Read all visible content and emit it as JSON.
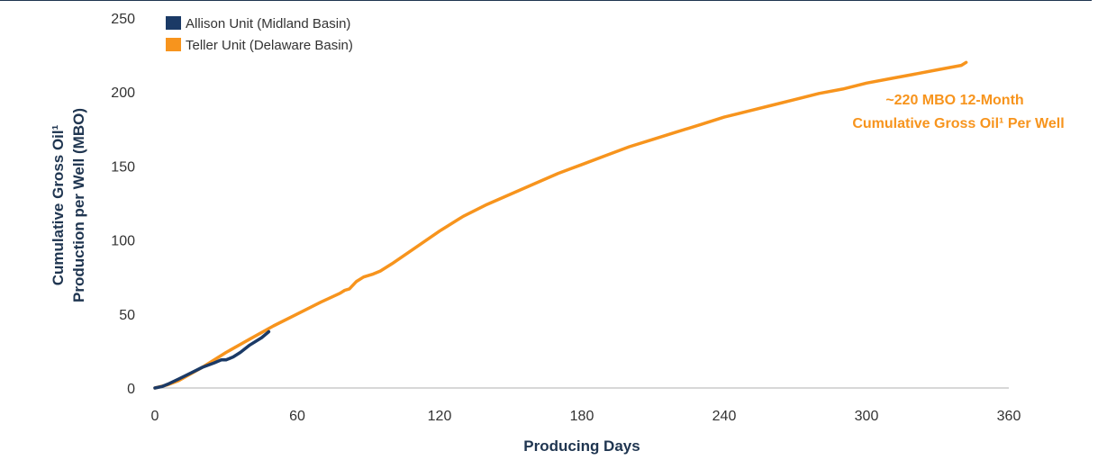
{
  "chart_data": {
    "type": "line",
    "xlabel": "Producing Days",
    "ylabel_line1": "Cumulative Gross Oil¹",
    "ylabel_line2": "Production per Well (MBO)",
    "xlim": [
      0,
      360
    ],
    "ylim": [
      0,
      250
    ],
    "x_ticks": [
      0,
      60,
      120,
      180,
      240,
      300,
      360
    ],
    "y_ticks": [
      0,
      50,
      100,
      150,
      200,
      250
    ],
    "grid": false,
    "legend_position": "top-left",
    "series": [
      {
        "name": "Allison Unit (Midland Basin)",
        "color": "#1b3a66",
        "x": [
          0,
          3,
          6,
          10,
          15,
          20,
          25,
          28,
          30,
          33,
          36,
          40,
          45,
          48
        ],
        "y": [
          0,
          1,
          3,
          6,
          10,
          14,
          17,
          19,
          19,
          21,
          24,
          29,
          34,
          38
        ]
      },
      {
        "name": "Teller Unit (Delaware Basin)",
        "color": "#f7941d",
        "x": [
          0,
          5,
          10,
          20,
          30,
          40,
          50,
          60,
          70,
          78,
          80,
          82,
          85,
          88,
          92,
          95,
          100,
          110,
          120,
          130,
          140,
          150,
          160,
          170,
          180,
          190,
          200,
          210,
          220,
          230,
          240,
          250,
          260,
          270,
          280,
          290,
          300,
          310,
          320,
          330,
          340,
          342
        ],
        "y": [
          0,
          2,
          5,
          14,
          24,
          33,
          42,
          50,
          58,
          64,
          66,
          67,
          72,
          75,
          77,
          79,
          84,
          95,
          106,
          116,
          124,
          131,
          138,
          145,
          151,
          157,
          163,
          168,
          173,
          178,
          183,
          187,
          191,
          195,
          199,
          202,
          206,
          209,
          212,
          215,
          218,
          220
        ]
      }
    ],
    "annotation_line1": "~220 MBO 12-Month",
    "annotation_line2": "Cumulative Gross Oil¹ Per Well"
  }
}
